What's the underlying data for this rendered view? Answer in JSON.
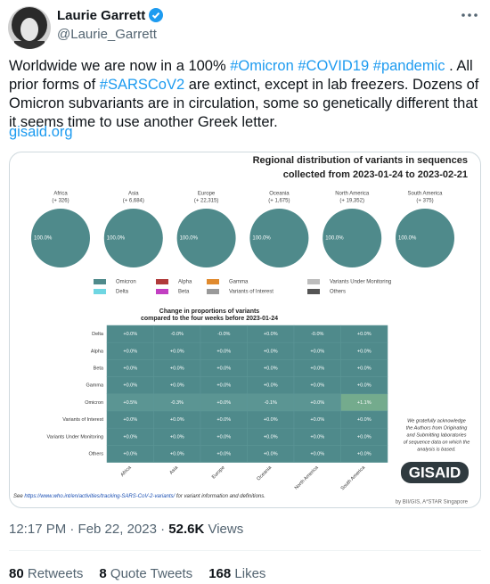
{
  "user": {
    "name": "Laurie Garrett",
    "handle": "@Laurie_Garrett"
  },
  "tweet": {
    "segments": [
      {
        "text": "Worldwide we are now in a 100% ",
        "link": false
      },
      {
        "text": "#Omicron",
        "link": true
      },
      {
        "text": " ",
        "link": false
      },
      {
        "text": "#COVID19",
        "link": true
      },
      {
        "text": " ",
        "link": false
      },
      {
        "text": "#pandemic",
        "link": true
      },
      {
        "text": " . All prior forms of ",
        "link": false
      },
      {
        "text": "#SARSCoV2",
        "link": true
      },
      {
        "text": " are extinct, except in lab freezers. Dozens of Omicron subvariants are in circulation, some so genetically different that it seems time to use another Greek letter.",
        "link": false
      }
    ],
    "url": "gisaid.org"
  },
  "image": {
    "title": [
      "Regional distribution of variants in sequences",
      "collected from 2023-01-24 to 2023-02-21"
    ],
    "regions": [
      {
        "name": "Africa",
        "count": "(+ 326)",
        "share": "100.0%"
      },
      {
        "name": "Asia",
        "count": "(+ 6,684)",
        "share": "100.0%"
      },
      {
        "name": "Europe",
        "count": "(+ 22,315)",
        "share": "100.0%"
      },
      {
        "name": "Oceania",
        "count": "(+ 1,675)",
        "share": "100.0%"
      },
      {
        "name": "North America",
        "count": "(+ 19,352)",
        "share": "100.0%"
      },
      {
        "name": "South America",
        "count": "(+ 375)",
        "share": "100.0%"
      }
    ],
    "legend": [
      {
        "name": "Omicron",
        "color": "#4f8a8b"
      },
      {
        "name": "Alpha",
        "color": "#b03a3a"
      },
      {
        "name": "Gamma",
        "color": "#e08a2e"
      },
      {
        "name": "Variants Under Monitoring",
        "color": "#bdbdbd"
      },
      {
        "name": "Delta",
        "color": "#6fd6e2"
      },
      {
        "name": "Beta",
        "color": "#c23fc2"
      },
      {
        "name": "Variants of Interest",
        "color": "#9a9a9a"
      },
      {
        "name": "Others",
        "color": "#555555"
      }
    ],
    "heatmap": {
      "title": [
        "Change in proportions of variants",
        "compared to the four weeks before 2023-01-24"
      ],
      "rows": [
        "Delta",
        "Alpha",
        "Beta",
        "Gamma",
        "Omicron",
        "Variants of Interest",
        "Variants Under Monitoring",
        "Others"
      ],
      "columns": [
        "Africa",
        "Asia",
        "Europe",
        "Oceania",
        "North America",
        "South America"
      ],
      "cells": [
        [
          "+0.0%",
          "-0.0%",
          "-0.0%",
          "+0.0%",
          "-0.0%",
          "+0.0%"
        ],
        [
          "+0.0%",
          "+0.0%",
          "+0.0%",
          "+0.0%",
          "+0.0%",
          "+0.0%"
        ],
        [
          "+0.0%",
          "+0.0%",
          "+0.0%",
          "+0.0%",
          "+0.0%",
          "+0.0%"
        ],
        [
          "+0.0%",
          "+0.0%",
          "+0.0%",
          "+0.0%",
          "+0.0%",
          "+0.0%"
        ],
        [
          "+0.5%",
          "-0.3%",
          "+0.0%",
          "-0.1%",
          "+0.0%",
          "+1.1%"
        ],
        [
          "+0.0%",
          "+0.0%",
          "+0.0%",
          "+0.0%",
          "+0.0%",
          "+0.0%"
        ],
        [
          "+0.0%",
          "+0.0%",
          "+0.0%",
          "+0.0%",
          "+0.0%",
          "+0.0%"
        ],
        [
          "+0.0%",
          "+0.0%",
          "+0.0%",
          "+0.0%",
          "+0.0%",
          "+0.0%"
        ]
      ]
    },
    "acknowledgement": [
      "We gratefully acknowledge",
      "the Authors from Originating",
      "and Submitting laboratories",
      "of sequence data on which the",
      "analysis is based."
    ],
    "logo": "GISAID",
    "credit": "by BII/GIS, A*STAR Singapore",
    "footnote": {
      "prefix": "See",
      "link": "https://www.who.int/en/activities/tracking-SARS-CoV-2-variants/",
      "suffix": "for variant information and definitions."
    }
  },
  "meta": {
    "timestamp": "12:17 PM · Feb 22, 2023 ·",
    "views_count": "52.6K",
    "views_label": "Views"
  },
  "stats": [
    {
      "count": "80",
      "label": "Retweets"
    },
    {
      "count": "8",
      "label": "Quote Tweets"
    },
    {
      "count": "168",
      "label": "Likes"
    }
  ]
}
